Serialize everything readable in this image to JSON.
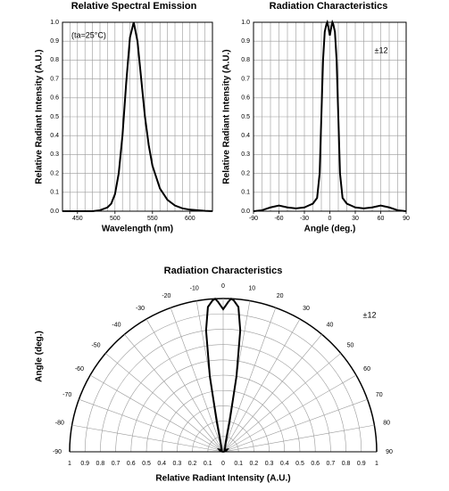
{
  "chart_data": [
    {
      "type": "line",
      "title": "Relative Spectral Emission",
      "xlabel": "Wavelength (nm)",
      "ylabel": "Relative Radiant Intensity (A.U.)",
      "annotation": "(ta=25°C)",
      "color": "#000000",
      "grid": true,
      "x": [
        430,
        450,
        470,
        480,
        490,
        495,
        500,
        505,
        510,
        515,
        520,
        525,
        530,
        535,
        540,
        545,
        550,
        560,
        570,
        580,
        590,
        600,
        620,
        630
      ],
      "values": [
        0,
        0,
        0,
        0.005,
        0.02,
        0.04,
        0.09,
        0.2,
        0.4,
        0.68,
        0.92,
        1.0,
        0.9,
        0.7,
        0.5,
        0.35,
        0.24,
        0.12,
        0.06,
        0.03,
        0.015,
        0.008,
        0.002,
        0
      ],
      "xlim": [
        430,
        630
      ],
      "xticks": [
        450,
        500,
        550,
        600
      ],
      "xgrid": [
        440,
        450,
        460,
        470,
        480,
        490,
        500,
        510,
        520,
        530,
        540,
        550,
        560,
        570,
        580,
        590,
        600,
        610,
        620
      ],
      "ylim": [
        0,
        1
      ],
      "yticks": [
        {
          "value": 0,
          "label": "0.0"
        },
        0.1,
        0.2,
        0.3,
        0.4,
        0.5,
        0.6,
        0.7,
        0.8,
        0.9,
        {
          "value": 1,
          "label": "1.0"
        }
      ]
    },
    {
      "type": "line",
      "title": "Radiation Characteristics",
      "xlabel": "Angle (deg.)",
      "ylabel": "Relative Radiant Intensity (A.U.)",
      "annotation": "±12",
      "color": "#000000",
      "grid": true,
      "x": [
        -90,
        -80,
        -70,
        -60,
        -50,
        -40,
        -30,
        -25,
        -20,
        -15,
        -12,
        -10,
        -8,
        -6,
        -4,
        -3,
        -2,
        0,
        2,
        3,
        4,
        6,
        8,
        10,
        12,
        15,
        20,
        25,
        30,
        40,
        50,
        60,
        70,
        80,
        90
      ],
      "values": [
        0,
        0.005,
        0.02,
        0.03,
        0.02,
        0.015,
        0.02,
        0.03,
        0.04,
        0.07,
        0.2,
        0.5,
        0.8,
        0.95,
        0.99,
        1.0,
        0.98,
        0.93,
        0.98,
        1.0,
        0.99,
        0.95,
        0.8,
        0.5,
        0.2,
        0.07,
        0.04,
        0.03,
        0.02,
        0.015,
        0.02,
        0.03,
        0.02,
        0.005,
        0
      ],
      "xlim": [
        -90,
        90
      ],
      "xticks": [
        -90,
        -60,
        -30,
        0,
        30,
        60,
        90
      ],
      "xgrid": [
        -80,
        -70,
        -60,
        -50,
        -40,
        -30,
        -20,
        -10,
        0,
        10,
        20,
        30,
        40,
        50,
        60,
        70,
        80
      ],
      "ylim": [
        0,
        1
      ],
      "yticks": [
        {
          "value": 0,
          "label": "0.0"
        },
        0.1,
        0.2,
        0.3,
        0.4,
        0.5,
        0.6,
        0.7,
        0.8,
        0.9,
        {
          "value": 1,
          "label": "1.0"
        }
      ]
    },
    {
      "type": "polar",
      "title": "Radiation Characteristics",
      "xlabel": "Relative Radiant Intensity (A.U.)",
      "ylabel": "Angle (deg.)",
      "annotation": "±12",
      "color": "#000000",
      "grid": true,
      "x": [
        -90,
        -80,
        -70,
        -60,
        -50,
        -40,
        -30,
        -25,
        -20,
        -15,
        -12,
        -10,
        -8,
        -6,
        -4,
        -3,
        -2,
        0,
        2,
        3,
        4,
        6,
        8,
        10,
        12,
        15,
        20,
        25,
        30,
        40,
        50,
        60,
        70,
        80,
        90
      ],
      "values": [
        0,
        0.005,
        0.02,
        0.03,
        0.02,
        0.015,
        0.02,
        0.03,
        0.04,
        0.07,
        0.2,
        0.5,
        0.8,
        0.95,
        0.99,
        1.0,
        0.98,
        0.93,
        0.98,
        1.0,
        0.99,
        0.95,
        0.8,
        0.5,
        0.2,
        0.07,
        0.04,
        0.03,
        0.02,
        0.015,
        0.02,
        0.03,
        0.02,
        0.005,
        0
      ],
      "angle_ticks": [
        -90,
        -80,
        -70,
        -60,
        -50,
        -40,
        -30,
        -20,
        -10,
        0,
        10,
        20,
        30,
        40,
        50,
        60,
        70,
        80,
        90
      ],
      "rlim": [
        0,
        1
      ],
      "rticks": [
        0,
        0.1,
        0.2,
        0.3,
        0.4,
        0.5,
        0.6,
        0.7,
        0.8,
        0.9,
        1
      ]
    }
  ]
}
